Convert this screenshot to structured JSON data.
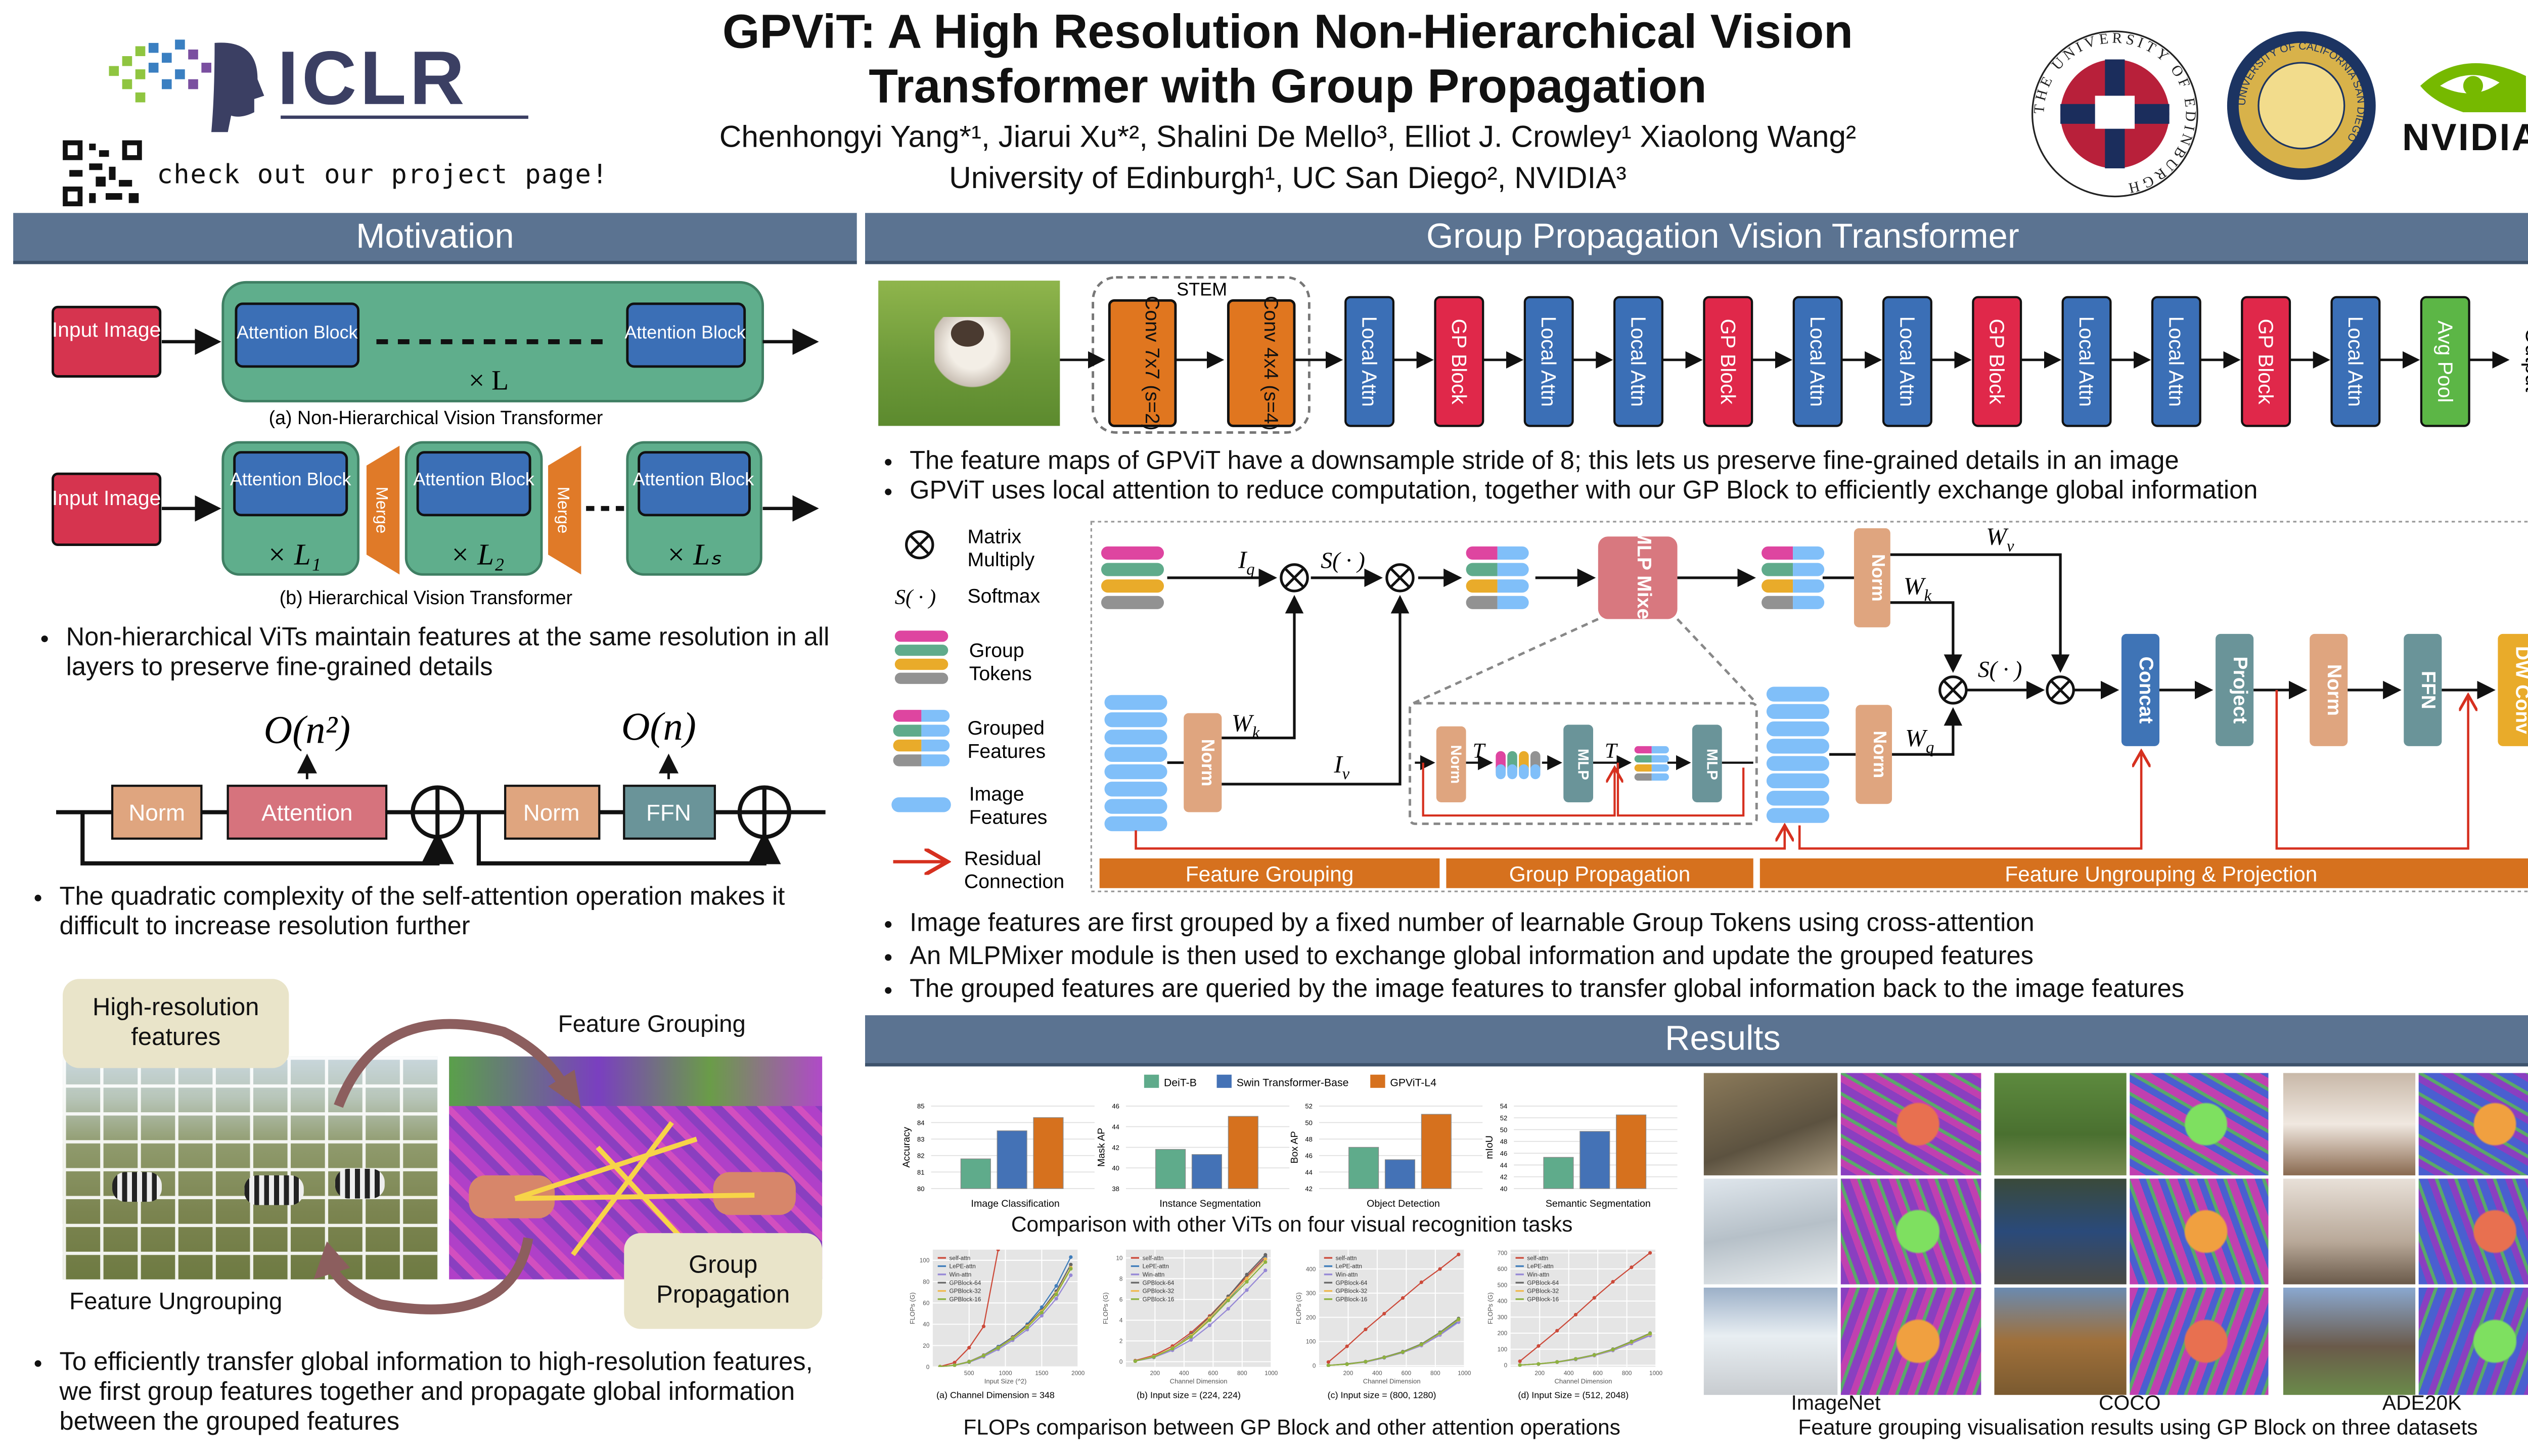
{
  "header": {
    "conference": "ICLR",
    "qr_caption": "check out our project page!",
    "title_line1": "GPViT: A High Resolution Non-Hierarchical Vision",
    "title_line2": "Transformer with Group Propagation",
    "authors": "Chenhongyi Yang*¹, Jiarui Xu*², Shalini De Mello³, Elliot J. Crowley¹ Xiaolong Wang²",
    "affiliations": "University of Edinburgh¹, UC San Diego², NVIDIA³",
    "logo_edinburgh": "THE UNIVERSITY OF EDINBURGH",
    "logo_ucsd": "UNIVERSITY OF CALIFORNIA SAN DIEGO",
    "logo_nvidia": "NVIDIA."
  },
  "motivation": {
    "title": "Motivation",
    "input_image": "Input Image",
    "attention_block": "Attention Block",
    "times_L": "× L",
    "caption_a": "(a) Non-Hierarchical Vision Transformer",
    "merge": "Merge",
    "times_L1": "× L₁",
    "times_L2": "× L₂",
    "times_Ls": "× Lₛ",
    "caption_b": "(b) Hierarchical Vision Transformer",
    "bullet1": "Non-hierarchical ViTs maintain features at the same resolution in all layers to preserve fine-grained details",
    "complexity_attn": "O(n²)",
    "complexity_ffn": "O(n)",
    "norm": "Norm",
    "attention": "Attention",
    "ffn": "FFN",
    "bullet2": "The quadratic complexity of the self-attention operation makes it difficult to increase resolution further",
    "bubble_highres": "High-resolution features",
    "label_grouping": "Feature Grouping",
    "label_ungrouping": "Feature Ungrouping",
    "bubble_propagation": "Group Propagation",
    "bullet3": "To efficiently transfer global information to high-resolution features, we first group features together and propagate global information between the grouped features"
  },
  "gpvit": {
    "title": "Group Propagation Vision Transformer",
    "stem_label": "STEM",
    "stem": [
      "Conv 7x7 (s=2)",
      "Conv 4x4 (s=4)"
    ],
    "pipeline": [
      {
        "label": "Local Attn",
        "type": "local"
      },
      {
        "label": "GP Block",
        "type": "gp"
      },
      {
        "label": "Local Attn",
        "type": "local"
      },
      {
        "label": "Local Attn",
        "type": "local"
      },
      {
        "label": "GP Block",
        "type": "gp"
      },
      {
        "label": "Local Attn",
        "type": "local"
      },
      {
        "label": "Local Attn",
        "type": "local"
      },
      {
        "label": "GP Block",
        "type": "gp"
      },
      {
        "label": "Local Attn",
        "type": "local"
      },
      {
        "label": "Local Attn",
        "type": "local"
      },
      {
        "label": "GP Block",
        "type": "gp"
      },
      {
        "label": "Local Attn",
        "type": "local"
      },
      {
        "label": "Avg Pool",
        "type": "pool"
      }
    ],
    "output": "Output",
    "colors": {
      "local": "#3b6fb6",
      "gp": "#e0284a",
      "pool": "#5cb646",
      "stem": "#e0761f"
    },
    "bullets_top": [
      "The feature maps of GPViT have a downsample stride of 8; this lets us preserve fine-grained details in an image",
      "GPViT uses local attention to reduce computation, together with our GP Block to efficiently exchange global information"
    ],
    "legend": {
      "matmul1": "Matrix",
      "matmul2": "Multiply",
      "softmax_sym": "S( · )",
      "softmax": "Softmax",
      "group1": "Group",
      "group2": "Tokens",
      "grouped1": "Grouped",
      "grouped2": "Features",
      "image1": "Image",
      "image2": "Features",
      "res1": "Residual",
      "res2": "Connection"
    },
    "diagram": {
      "Iq": "I",
      "Iq_sub": "q",
      "Iv": "I",
      "Iv_sub": "v",
      "Wk": "W",
      "k": "k",
      "Wv": "W",
      "v": "v",
      "Wq": "W",
      "q": "q",
      "S": "S( · )",
      "T": "T",
      "mlp_mixer": "MLP Mixer",
      "norm": "Norm",
      "mlp": "MLP",
      "concat": "Concat",
      "project": "Project",
      "ffn": "FFN",
      "dwconv": "DW Conv",
      "stage1": "Feature Grouping",
      "stage2": "Group Propagation",
      "stage3": "Feature Ungrouping & Projection"
    },
    "bullets_bottom": [
      "Image features are first grouped by a fixed number of learnable Group Tokens using cross-attention",
      "An MLPMixer module is then used to exchange global information and update the grouped features",
      "The grouped features are queried by the image features to transfer global information back to the image features"
    ]
  },
  "results": {
    "title": "Results",
    "bar_caption": "Comparison with other ViTs on four visual recognition tasks",
    "line_caption": "FLOPs comparison between GP Block and other attention operations",
    "vis_labels": [
      "ImageNet",
      "COCO",
      "ADE20K"
    ],
    "vis_caption": "Feature grouping visualisation results using GP Block on three datasets"
  },
  "chart_data": [
    {
      "type": "bar",
      "legend": [
        "DeiT-B",
        "Swin Transformer-Base",
        "GPViT-L4"
      ],
      "colors": [
        "#5fab8b",
        "#4472b6",
        "#d6711e"
      ],
      "panels": [
        {
          "category": "Image Classification",
          "ylabel": "Accuracy",
          "ylim": [
            80,
            85
          ],
          "ticks": [
            80,
            81,
            82,
            83,
            84,
            85
          ],
          "values": [
            81.8,
            83.5,
            84.3
          ]
        },
        {
          "category": "Instance Segmentation",
          "ylabel": "Mask AP",
          "ylim": [
            38,
            46
          ],
          "ticks": [
            38,
            40,
            42,
            44,
            46
          ],
          "values": [
            41.8,
            41.3,
            45.0
          ]
        },
        {
          "category": "Object Detection",
          "ylabel": "Box AP",
          "ylim": [
            42,
            52
          ],
          "ticks": [
            42,
            44,
            46,
            48,
            50,
            52
          ],
          "values": [
            47.0,
            45.5,
            51.0
          ]
        },
        {
          "category": "Semantic Segmentation",
          "ylabel": "mIoU",
          "ylim": [
            40,
            54
          ],
          "ticks": [
            40,
            42,
            44,
            46,
            48,
            50,
            52,
            54
          ],
          "values": [
            45.3,
            49.7,
            52.5
          ]
        }
      ]
    },
    {
      "type": "line",
      "series_names": [
        "self-attn",
        "LePE-attn",
        "Win-attn",
        "GPBlock-64",
        "GPBlock-32",
        "GPBlock-16"
      ],
      "colors": [
        "#cc4a3a",
        "#3f7dbb",
        "#9688d6",
        "#666666",
        "#f0b94f",
        "#8db23f"
      ],
      "panels": [
        {
          "caption": "(a) Channel Dimension = 348",
          "xlabel": "Input Size (^2)",
          "ylabel": "FLOPs (G)",
          "xlim": [
            0,
            2000
          ],
          "ylim": [
            0,
            110
          ],
          "xticks": [
            500,
            1000,
            1500,
            2000
          ],
          "yticks": [
            0,
            20,
            40,
            60,
            80,
            100
          ],
          "x": [
            100,
            300,
            500,
            700,
            900,
            1100,
            1300,
            1500,
            1700,
            1900
          ],
          "series": [
            [
              0.3,
              4,
              18,
              38,
              110,
              null,
              null,
              null,
              null,
              null
            ],
            [
              0.2,
              1.6,
              5,
              11,
              19,
              28,
              40,
              56,
              76,
              103
            ],
            [
              0.2,
              1.4,
              4.3,
              9.5,
              16.5,
              25,
              35,
              48,
              64,
              86
            ],
            [
              0.2,
              1.6,
              5,
              11,
              18.5,
              28,
              39,
              53,
              71,
              96
            ],
            [
              0.2,
              1.5,
              4.8,
              10.7,
              18,
              27,
              38,
              52,
              69,
              93
            ],
            [
              0.2,
              1.5,
              4.7,
              10.5,
              17.8,
              26.5,
              37,
              51,
              68,
              92
            ]
          ]
        },
        {
          "caption": "(b) Input size = (224, 224)",
          "xlabel": "Channel Dimension",
          "ylabel": "FLOPs (G)",
          "xlim": [
            0,
            1000
          ],
          "ylim": [
            -0.5,
            10.8
          ],
          "xticks": [
            200,
            400,
            600,
            800,
            1000
          ],
          "yticks": [
            0,
            2,
            4,
            6,
            8,
            10
          ],
          "x": [
            64,
            192,
            320,
            448,
            576,
            704,
            832,
            960
          ],
          "series": [
            [
              0.1,
              0.6,
              1.5,
              2.8,
              4.4,
              6.3,
              8.2,
              10.1
            ],
            [
              0.05,
              0.5,
              1.3,
              2.5,
              4.1,
              6.0,
              8.0,
              10.0
            ],
            [
              0.05,
              0.4,
              1.1,
              2.1,
              3.5,
              5.1,
              6.9,
              8.8
            ],
            [
              0.05,
              0.5,
              1.3,
              2.6,
              4.3,
              6.3,
              8.4,
              10.3
            ],
            [
              0.05,
              0.5,
              1.3,
              2.5,
              4.2,
              6.1,
              8.0,
              9.9
            ],
            [
              0.05,
              0.45,
              1.25,
              2.4,
              4.0,
              5.9,
              7.7,
              9.6
            ]
          ]
        },
        {
          "caption": "(c) Input size = (800, 1280)",
          "xlabel": "Channel Dimension",
          "ylabel": "FLOPs (G)",
          "xlim": [
            0,
            1000
          ],
          "ylim": [
            -5,
            480
          ],
          "xticks": [
            200,
            400,
            600,
            800,
            1000
          ],
          "yticks": [
            0,
            100,
            200,
            300,
            400
          ],
          "x": [
            64,
            192,
            320,
            448,
            576,
            704,
            832,
            960
          ],
          "series": [
            [
              15,
              80,
              150,
              215,
              280,
              345,
              400,
              460
            ],
            [
              1,
              6,
              16,
              33,
              55,
              85,
              130,
              185
            ],
            [
              1,
              6,
              15,
              32,
              54,
              83,
              127,
              180
            ],
            [
              1,
              7,
              17,
              35,
              58,
              90,
              138,
              195
            ],
            [
              1,
              6,
              16,
              34,
              56,
              87,
              134,
              190
            ],
            [
              1,
              6,
              16,
              34,
              56,
              88,
              135,
              192
            ]
          ]
        },
        {
          "caption": "(d) Input Size = (512, 2048)",
          "xlabel": "Channel Dimension",
          "ylabel": "FLOPs (G)",
          "xlim": [
            0,
            1000
          ],
          "ylim": [
            -10,
            720
          ],
          "xticks": [
            200,
            400,
            600,
            800,
            1000
          ],
          "yticks": [
            0,
            100,
            200,
            300,
            400,
            500,
            600,
            700
          ],
          "x": [
            64,
            192,
            320,
            448,
            576,
            704,
            832,
            960
          ],
          "series": [
            [
              25,
              120,
              215,
              315,
              420,
              520,
              610,
              700
            ],
            [
              1,
              8,
              20,
              38,
              62,
              95,
              140,
              190
            ],
            [
              1,
              7,
              19,
              36,
              60,
              92,
              136,
              185
            ],
            [
              1,
              8,
              21,
              40,
              65,
              100,
              148,
              200
            ],
            [
              1,
              8,
              20,
              39,
              63,
              97,
              144,
              195
            ],
            [
              1,
              8,
              20,
              39,
              64,
              98,
              146,
              198
            ]
          ]
        }
      ]
    }
  ]
}
